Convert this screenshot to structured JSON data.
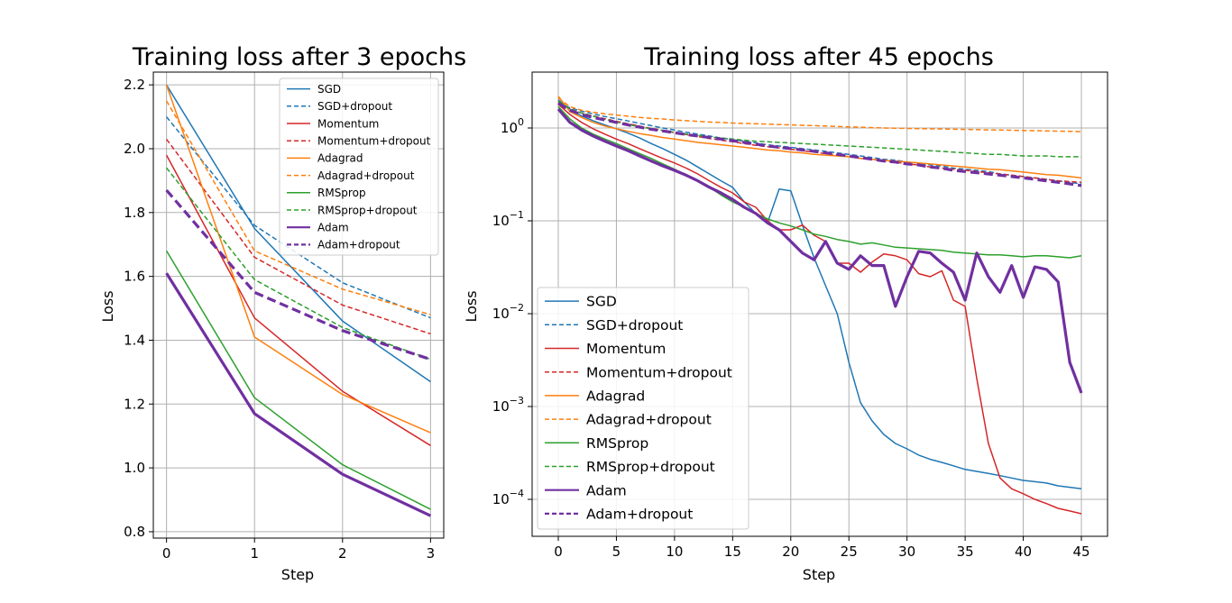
{
  "chart_data": [
    {
      "type": "line",
      "title": "Training loss after 3 epochs",
      "xlabel": "Step",
      "ylabel": "Loss",
      "xlim": [
        -0.15,
        3.15
      ],
      "ylim": [
        0.78,
        2.24
      ],
      "xticks": [
        0,
        1,
        2,
        3
      ],
      "yticks": [
        0.8,
        1.0,
        1.2,
        1.4,
        1.6,
        1.8,
        2.0,
        2.2
      ],
      "ytick_labels": [
        "0.8",
        "1.0",
        "1.2",
        "1.4",
        "1.6",
        "1.8",
        "2.0",
        "2.2"
      ],
      "grid": true,
      "legend_position": "top-right",
      "x": [
        0,
        1,
        2,
        3
      ],
      "series": [
        {
          "name": "SGD",
          "color": "#1f77b4",
          "style": "solid",
          "values": [
            2.2,
            1.75,
            1.46,
            1.27
          ]
        },
        {
          "name": "SGD+dropout",
          "color": "#1f77b4",
          "style": "dashed",
          "values": [
            2.1,
            1.76,
            1.58,
            1.47
          ]
        },
        {
          "name": "Momentum",
          "color": "#d62728",
          "style": "solid",
          "values": [
            1.98,
            1.47,
            1.24,
            1.07
          ]
        },
        {
          "name": "Momentum+dropout",
          "color": "#d62728",
          "style": "dashed",
          "values": [
            2.03,
            1.66,
            1.51,
            1.42
          ]
        },
        {
          "name": "Adagrad",
          "color": "#ff7f0e",
          "style": "solid",
          "values": [
            2.2,
            1.41,
            1.23,
            1.11
          ]
        },
        {
          "name": "Adagrad+dropout",
          "color": "#ff7f0e",
          "style": "dashed",
          "values": [
            2.15,
            1.68,
            1.56,
            1.48
          ]
        },
        {
          "name": "RMSprop",
          "color": "#2ca02c",
          "style": "solid",
          "values": [
            1.68,
            1.22,
            1.01,
            0.87
          ]
        },
        {
          "name": "RMSprop+dropout",
          "color": "#2ca02c",
          "style": "dashed",
          "values": [
            1.94,
            1.59,
            1.44,
            1.34
          ]
        },
        {
          "name": "Adam",
          "color": "#7030a0",
          "style": "solid",
          "thick": true,
          "values": [
            1.61,
            1.17,
            0.98,
            0.85
          ]
        },
        {
          "name": "Adam+dropout",
          "color": "#7030a0",
          "style": "dashed",
          "thick": true,
          "values": [
            1.87,
            1.55,
            1.43,
            1.34
          ]
        }
      ]
    },
    {
      "type": "line",
      "title": "Training loss after 45 epochs",
      "xlabel": "Step",
      "ylabel": "Loss",
      "xlim": [
        -2.25,
        47.25
      ],
      "ylim": [
        4e-05,
        4
      ],
      "yscale": "log",
      "xticks": [
        0,
        5,
        10,
        15,
        20,
        25,
        30,
        35,
        40,
        45
      ],
      "yticks": [
        0.0001,
        0.001,
        0.01,
        0.1,
        1
      ],
      "ytick_labels": [
        {
          "base": "10",
          "exp": "−4"
        },
        {
          "base": "10",
          "exp": "−3"
        },
        {
          "base": "10",
          "exp": "−2"
        },
        {
          "base": "10",
          "exp": "−1"
        },
        {
          "base": "10",
          "exp": "0"
        }
      ],
      "grid": true,
      "legend_position": "bottom-left",
      "x": [
        0,
        1,
        2,
        3,
        4,
        5,
        6,
        7,
        8,
        9,
        10,
        11,
        12,
        13,
        14,
        15,
        16,
        17,
        18,
        19,
        20,
        21,
        22,
        23,
        24,
        25,
        26,
        27,
        28,
        29,
        30,
        31,
        32,
        33,
        34,
        35,
        36,
        37,
        38,
        39,
        40,
        41,
        42,
        43,
        44,
        45
      ],
      "series": [
        {
          "name": "SGD",
          "color": "#1f77b4",
          "style": "solid",
          "values": [
            2.0,
            1.6,
            1.35,
            1.2,
            1.08,
            0.98,
            0.88,
            0.78,
            0.68,
            0.6,
            0.52,
            0.45,
            0.38,
            0.32,
            0.27,
            0.23,
            0.16,
            0.12,
            0.095,
            0.22,
            0.21,
            0.09,
            0.04,
            0.02,
            0.01,
            0.003,
            0.0011,
            0.0007,
            0.0005,
            0.0004,
            0.00035,
            0.0003,
            0.00027,
            0.00025,
            0.00023,
            0.00021,
            0.0002,
            0.00019,
            0.00018,
            0.00017,
            0.00016,
            0.000155,
            0.00015,
            0.00014,
            0.000135,
            0.00013
          ]
        },
        {
          "name": "SGD+dropout",
          "color": "#1f77b4",
          "style": "dashed",
          "values": [
            1.85,
            1.65,
            1.52,
            1.42,
            1.33,
            1.26,
            1.19,
            1.12,
            1.06,
            1.0,
            0.95,
            0.9,
            0.86,
            0.82,
            0.78,
            0.75,
            0.72,
            0.69,
            0.66,
            0.64,
            0.62,
            0.6,
            0.58,
            0.56,
            0.54,
            0.52,
            0.5,
            0.48,
            0.46,
            0.45,
            0.43,
            0.42,
            0.4,
            0.39,
            0.37,
            0.36,
            0.35,
            0.34,
            0.32,
            0.31,
            0.3,
            0.29,
            0.28,
            0.27,
            0.26,
            0.25
          ]
        },
        {
          "name": "Momentum",
          "color": "#d62728",
          "style": "solid",
          "values": [
            1.8,
            1.4,
            1.15,
            0.98,
            0.86,
            0.76,
            0.68,
            0.6,
            0.53,
            0.47,
            0.42,
            0.37,
            0.32,
            0.27,
            0.23,
            0.2,
            0.16,
            0.14,
            0.1,
            0.08,
            0.08,
            0.09,
            0.07,
            0.06,
            0.035,
            0.035,
            0.028,
            0.036,
            0.044,
            0.042,
            0.038,
            0.027,
            0.025,
            0.029,
            0.014,
            0.012,
            0.002,
            0.0004,
            0.00017,
            0.00013,
            0.000115,
            0.0001,
            9e-05,
            8e-05,
            7.5e-05,
            7e-05
          ]
        },
        {
          "name": "Momentum+dropout",
          "color": "#d62728",
          "style": "dashed",
          "values": [
            1.9,
            1.6,
            1.45,
            1.35,
            1.26,
            1.18,
            1.11,
            1.05,
            0.99,
            0.94,
            0.89,
            0.85,
            0.81,
            0.77,
            0.74,
            0.71,
            0.68,
            0.65,
            0.63,
            0.61,
            0.59,
            0.57,
            0.55,
            0.53,
            0.51,
            0.49,
            0.47,
            0.46,
            0.44,
            0.43,
            0.41,
            0.4,
            0.38,
            0.37,
            0.36,
            0.35,
            0.34,
            0.33,
            0.32,
            0.31,
            0.3,
            0.29,
            0.28,
            0.27,
            0.265,
            0.26
          ]
        },
        {
          "name": "Adagrad",
          "color": "#ff7f0e",
          "style": "solid",
          "values": [
            2.2,
            1.5,
            1.3,
            1.15,
            1.05,
            0.98,
            0.92,
            0.87,
            0.83,
            0.79,
            0.76,
            0.73,
            0.7,
            0.68,
            0.66,
            0.64,
            0.62,
            0.6,
            0.58,
            0.57,
            0.55,
            0.54,
            0.52,
            0.51,
            0.5,
            0.49,
            0.47,
            0.46,
            0.45,
            0.44,
            0.43,
            0.42,
            0.41,
            0.4,
            0.39,
            0.38,
            0.37,
            0.36,
            0.355,
            0.345,
            0.335,
            0.325,
            0.315,
            0.31,
            0.3,
            0.29
          ]
        },
        {
          "name": "Adagrad+dropout",
          "color": "#ff7f0e",
          "style": "dashed",
          "values": [
            2.1,
            1.7,
            1.55,
            1.48,
            1.42,
            1.38,
            1.34,
            1.3,
            1.27,
            1.25,
            1.22,
            1.2,
            1.18,
            1.16,
            1.15,
            1.13,
            1.12,
            1.11,
            1.1,
            1.09,
            1.08,
            1.07,
            1.06,
            1.05,
            1.04,
            1.03,
            1.02,
            1.01,
            1.0,
            0.995,
            0.99,
            0.985,
            0.98,
            0.975,
            0.97,
            0.965,
            0.96,
            0.955,
            0.95,
            0.945,
            0.94,
            0.935,
            0.93,
            0.925,
            0.92,
            0.915
          ]
        },
        {
          "name": "RMSprop",
          "color": "#2ca02c",
          "style": "solid",
          "values": [
            1.7,
            1.25,
            1.0,
            0.86,
            0.76,
            0.68,
            0.6,
            0.53,
            0.47,
            0.41,
            0.36,
            0.31,
            0.27,
            0.23,
            0.19,
            0.16,
            0.14,
            0.12,
            0.105,
            0.095,
            0.088,
            0.08,
            0.072,
            0.068,
            0.063,
            0.06,
            0.056,
            0.058,
            0.055,
            0.052,
            0.051,
            0.05,
            0.049,
            0.048,
            0.046,
            0.045,
            0.044,
            0.043,
            0.043,
            0.042,
            0.041,
            0.042,
            0.042,
            0.041,
            0.04,
            0.042
          ]
        },
        {
          "name": "RMSprop+dropout",
          "color": "#2ca02c",
          "style": "dashed",
          "values": [
            1.95,
            1.6,
            1.45,
            1.34,
            1.24,
            1.16,
            1.09,
            1.03,
            0.98,
            0.94,
            0.9,
            0.86,
            0.83,
            0.8,
            0.78,
            0.76,
            0.74,
            0.72,
            0.71,
            0.7,
            0.69,
            0.68,
            0.67,
            0.66,
            0.65,
            0.64,
            0.63,
            0.62,
            0.61,
            0.6,
            0.59,
            0.58,
            0.57,
            0.56,
            0.55,
            0.54,
            0.53,
            0.52,
            0.52,
            0.51,
            0.5,
            0.5,
            0.5,
            0.49,
            0.49,
            0.49
          ]
        },
        {
          "name": "Adam",
          "color": "#7030a0",
          "style": "solid",
          "thick": true,
          "values": [
            1.6,
            1.15,
            0.95,
            0.82,
            0.72,
            0.64,
            0.57,
            0.5,
            0.44,
            0.39,
            0.35,
            0.31,
            0.27,
            0.23,
            0.2,
            0.17,
            0.14,
            0.12,
            0.095,
            0.08,
            0.06,
            0.045,
            0.038,
            0.06,
            0.035,
            0.03,
            0.042,
            0.033,
            0.033,
            0.012,
            0.025,
            0.047,
            0.045,
            0.035,
            0.028,
            0.014,
            0.045,
            0.025,
            0.017,
            0.033,
            0.015,
            0.032,
            0.03,
            0.022,
            0.003,
            0.0014
          ]
        },
        {
          "name": "Adam+dropout",
          "color": "#7030a0",
          "style": "dashed",
          "thick": true,
          "values": [
            1.85,
            1.55,
            1.4,
            1.3,
            1.22,
            1.15,
            1.08,
            1.02,
            0.97,
            0.93,
            0.89,
            0.85,
            0.82,
            0.79,
            0.76,
            0.73,
            0.7,
            0.67,
            0.64,
            0.62,
            0.6,
            0.58,
            0.56,
            0.54,
            0.52,
            0.5,
            0.48,
            0.46,
            0.44,
            0.43,
            0.41,
            0.4,
            0.38,
            0.37,
            0.35,
            0.34,
            0.33,
            0.32,
            0.31,
            0.3,
            0.29,
            0.28,
            0.27,
            0.26,
            0.25,
            0.24
          ]
        }
      ]
    }
  ]
}
